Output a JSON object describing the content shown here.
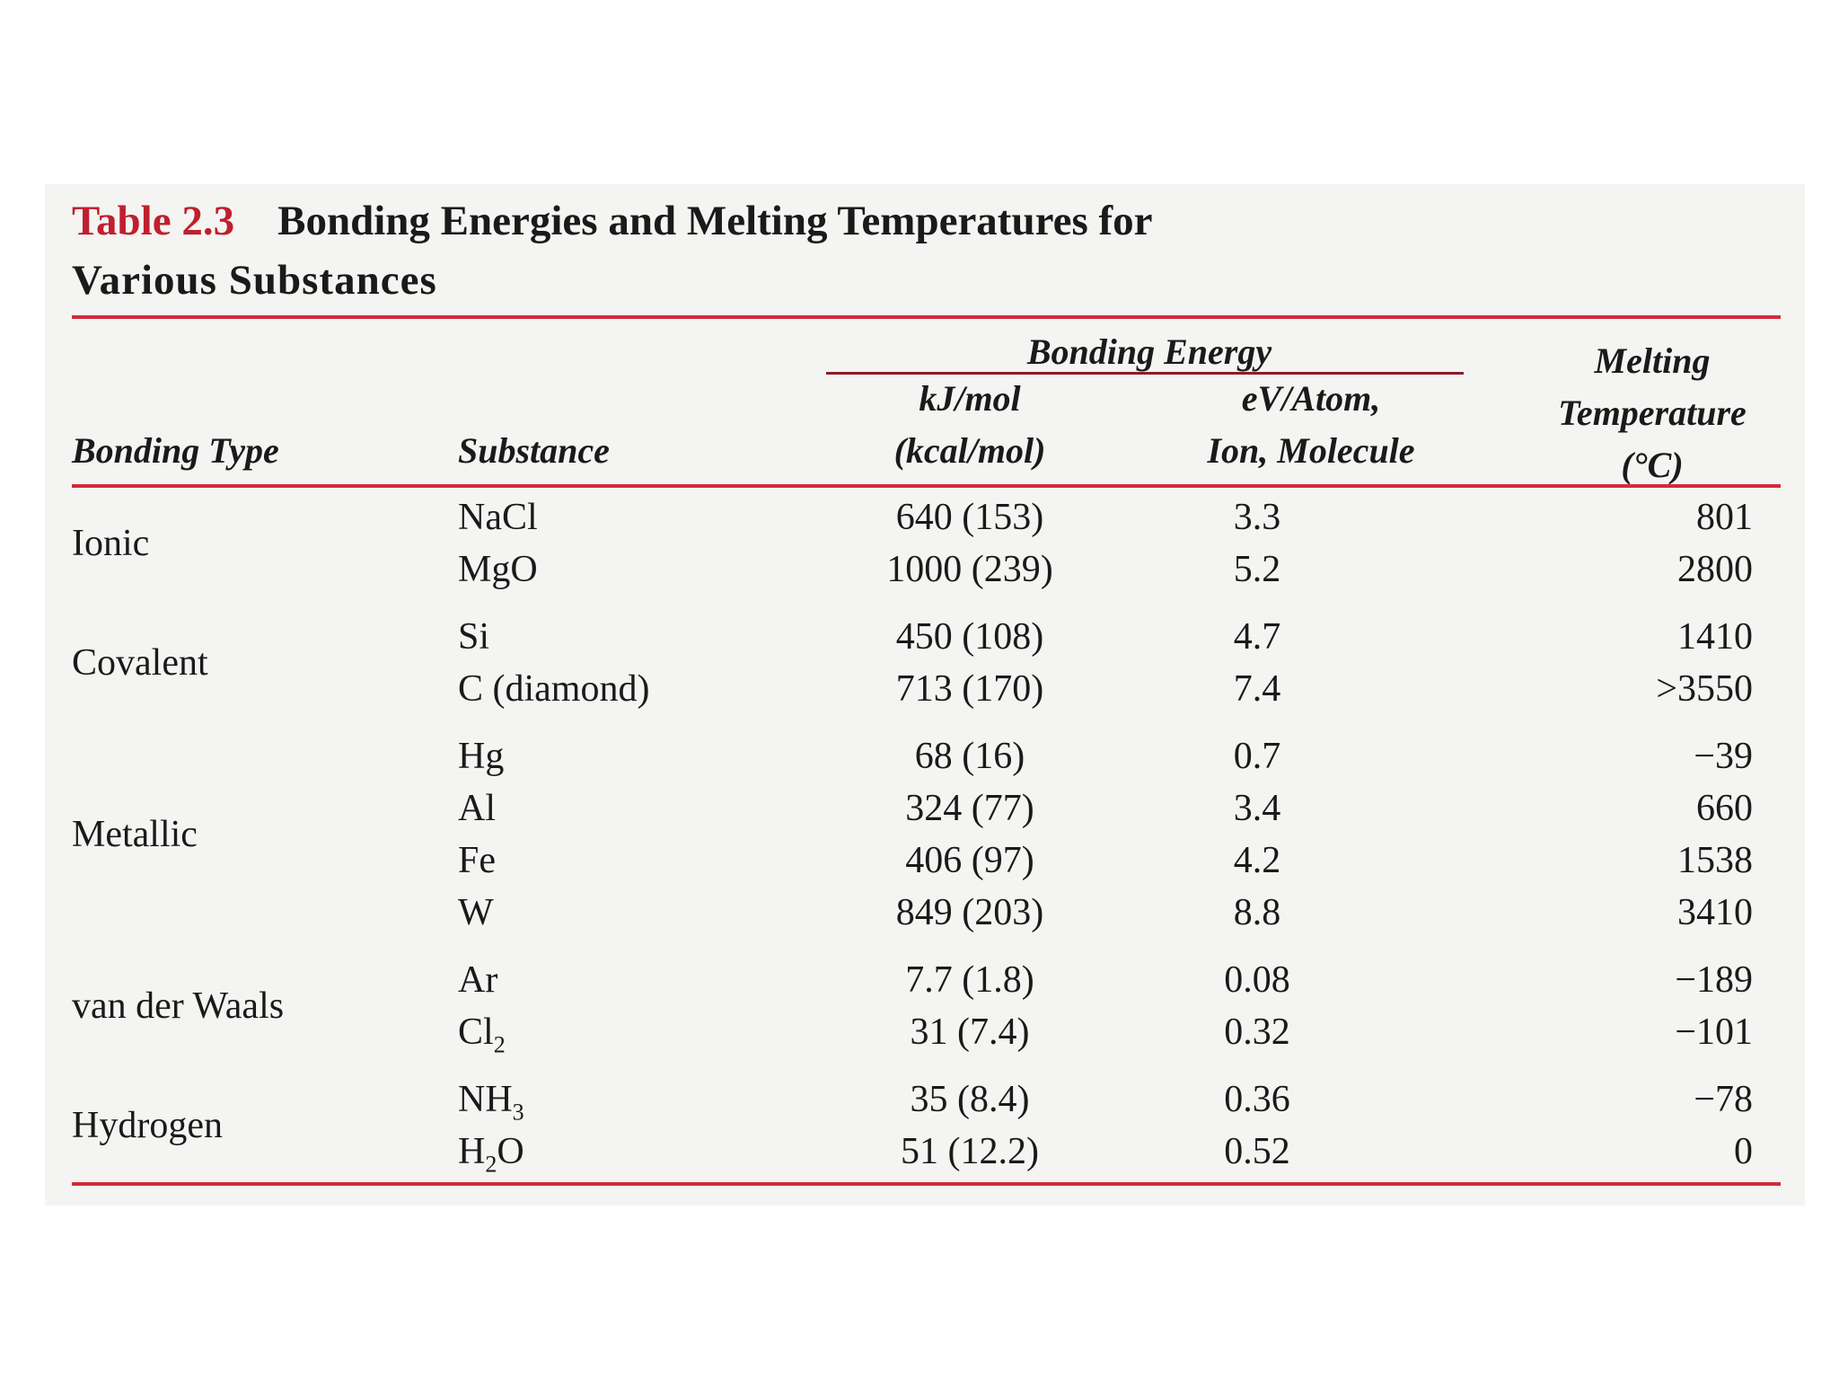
{
  "caption": {
    "label": "Table 2.3",
    "title_line1": "Bonding Energies and Melting Temperatures for",
    "title_line2": "Various Substances"
  },
  "headers": {
    "bonding_type": "Bonding Type",
    "substance": "Substance",
    "bonding_energy": "Bonding Energy",
    "kj_line1": "kJ/mol",
    "kj_line2": "(kcal/mol)",
    "ev_line1": "eV/Atom,",
    "ev_line2": "Ion, Molecule",
    "melt_line1": "Melting",
    "melt_line2": "Temperature",
    "melt_line3": "(°C)"
  },
  "groups": [
    {
      "type": "Ionic",
      "rows": [
        {
          "substance": "NaCl",
          "kj": "640 (153)",
          "ev": "3.3",
          "mp": "801"
        },
        {
          "substance": "MgO",
          "kj": "1000 (239)",
          "ev": "5.2",
          "mp": "2800"
        }
      ]
    },
    {
      "type": "Covalent",
      "rows": [
        {
          "substance": "Si",
          "kj": "450 (108)",
          "ev": "4.7",
          "mp": "1410"
        },
        {
          "substance": "C (diamond)",
          "kj": "713 (170)",
          "ev": "7.4",
          "mp": ">3550"
        }
      ]
    },
    {
      "type": "Metallic",
      "rows": [
        {
          "substance": "Hg",
          "kj": "68 (16)",
          "ev": "0.7",
          "mp": "−39"
        },
        {
          "substance": "Al",
          "kj": "324 (77)",
          "ev": "3.4",
          "mp": "660"
        },
        {
          "substance": "Fe",
          "kj": "406 (97)",
          "ev": "4.2",
          "mp": "1538"
        },
        {
          "substance": "W",
          "kj": "849 (203)",
          "ev": "8.8",
          "mp": "3410"
        }
      ]
    },
    {
      "type": "van der Waals",
      "rows": [
        {
          "substance": "Ar",
          "kj": "7.7 (1.8)",
          "ev": "0.08",
          "mp": "−189"
        },
        {
          "substance": "Cl",
          "sub": "2",
          "kj": "31 (7.4)",
          "ev": "0.32",
          "mp": "−101"
        }
      ]
    },
    {
      "type": "Hydrogen",
      "rows": [
        {
          "substance": "NH",
          "sub": "3",
          "kj": "35 (8.4)",
          "ev": "0.36",
          "mp": "−78"
        },
        {
          "substance": "H",
          "sub": "2",
          "suffix": "O",
          "kj": "51 (12.2)",
          "ev": "0.52",
          "mp": "0"
        }
      ]
    }
  ]
}
